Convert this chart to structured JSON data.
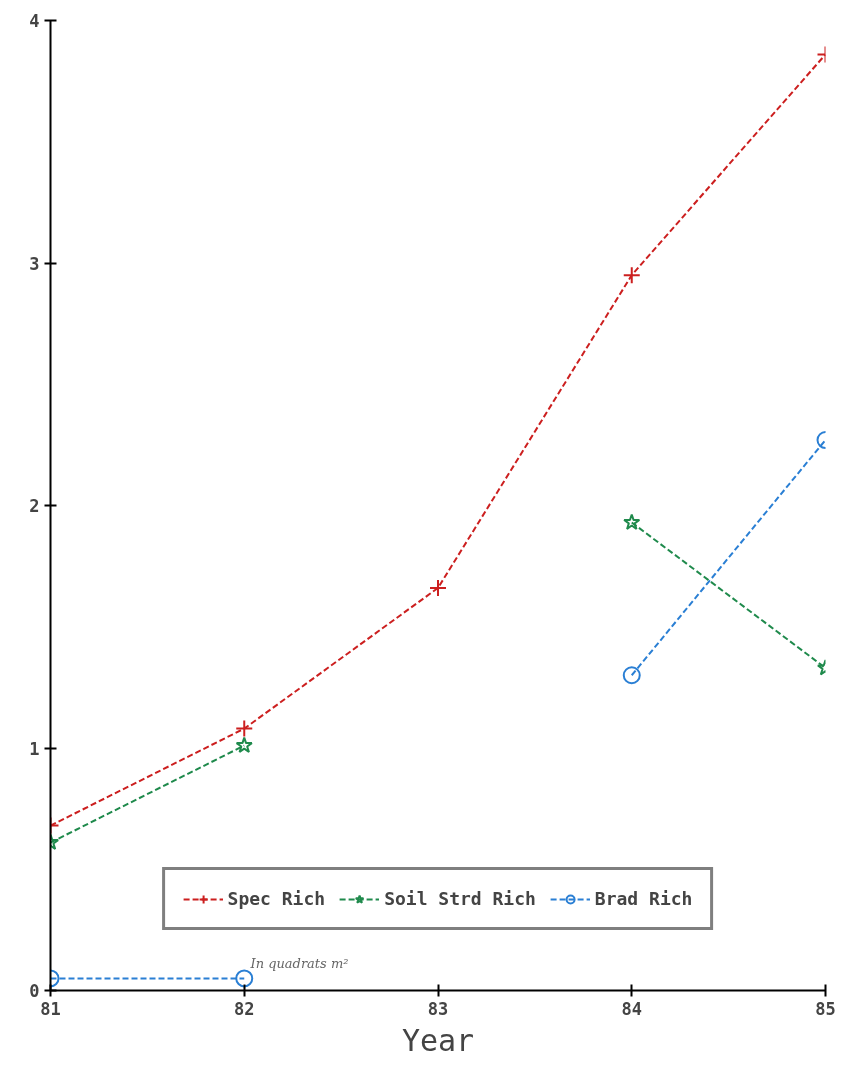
{
  "chart_data": {
    "type": "line",
    "xlabel": "Year",
    "x": [
      81,
      82,
      83,
      84,
      85
    ],
    "series": [
      {
        "name": "Spec Rich",
        "color": "#cc1f1f",
        "marker": "cross",
        "values": [
          0.68,
          1.08,
          1.66,
          2.95,
          3.86
        ]
      },
      {
        "name": "Soil Strd Rich",
        "color": "#1f8a4c",
        "marker": "star",
        "values": [
          0.61,
          1.01,
          null,
          1.93,
          1.33
        ]
      },
      {
        "name": "Brad Rich",
        "color": "#2a7fd4",
        "marker": "circle",
        "values": [
          0.05,
          0.05,
          null,
          1.3,
          2.27
        ]
      }
    ],
    "xlim": [
      81,
      85
    ],
    "ylim": [
      0,
      4
    ],
    "xticks": [
      81,
      82,
      83,
      84,
      85
    ],
    "yticks": [
      0,
      1,
      2,
      3,
      4
    ],
    "grid": false,
    "legend": "bottom",
    "line_style": "dashed",
    "annotations": [
      "In quadrats m²"
    ]
  }
}
